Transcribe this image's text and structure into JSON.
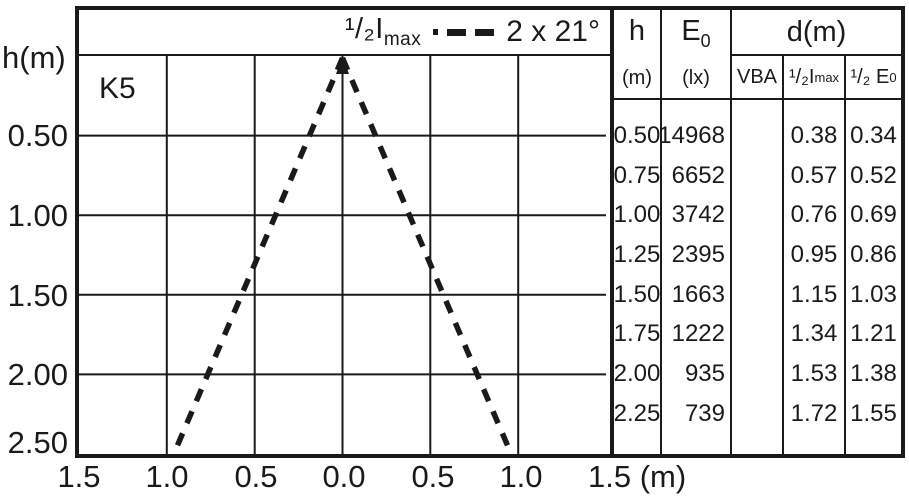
{
  "chart": {
    "corner_label": "K5",
    "y_axis_title": "h(m)",
    "y_ticks": [
      "0.50",
      "1.00",
      "1.50",
      "2.00",
      "2.50"
    ],
    "x_ticks": [
      "1.5",
      "1.0",
      "0.5",
      "0.0",
      "0.5",
      "1.0"
    ],
    "x_tick_last": "1.5 (m)",
    "legend": {
      "imax_main": "¹/₂I",
      "imax_sub": "max",
      "angle": "2 x 21°"
    }
  },
  "chart_data": {
    "type": "line",
    "title": "K5",
    "ylabel": "h(m)",
    "xlabel": "(m)",
    "x_range": [
      -1.5,
      1.5
    ],
    "y_range": [
      0,
      2.5
    ],
    "y_inverted": true,
    "grid": true,
    "x_tick_step": 0.5,
    "y_tick_step": 0.5,
    "legend_label": "1/2 Imax",
    "beam_angle_label": "2 x 21°",
    "beam_half_angle_deg": 21,
    "series": [
      {
        "name": "1/2 Imax beam edge left",
        "style": "dashed",
        "x": [
          0,
          -0.96
        ],
        "y": [
          0,
          2.5
        ]
      },
      {
        "name": "1/2 Imax beam edge right",
        "style": "dashed",
        "x": [
          0,
          0.96
        ],
        "y": [
          0,
          2.5
        ]
      }
    ]
  },
  "table": {
    "header": {
      "h_title": "h",
      "h_unit": "(m)",
      "e0_title": "E",
      "e0_title_sub": "0",
      "e0_unit": "(lx)",
      "d_title": "d(m)",
      "sub_vba": "VBA",
      "sub_imax_main": "¹/₂I",
      "sub_imax_sub": "max",
      "sub_e0_main": "¹/₂ E",
      "sub_e0_sub": "0"
    },
    "rows": [
      {
        "h": "0.50",
        "e0": "14968",
        "vba": "",
        "d_imax": "0.38",
        "d_e0": "0.34"
      },
      {
        "h": "0.75",
        "e0": "6652",
        "vba": "",
        "d_imax": "0.57",
        "d_e0": "0.52"
      },
      {
        "h": "1.00",
        "e0": "3742",
        "vba": "",
        "d_imax": "0.76",
        "d_e0": "0.69"
      },
      {
        "h": "1.25",
        "e0": "2395",
        "vba": "",
        "d_imax": "0.95",
        "d_e0": "0.86"
      },
      {
        "h": "1.50",
        "e0": "1663",
        "vba": "",
        "d_imax": "1.15",
        "d_e0": "1.03"
      },
      {
        "h": "1.75",
        "e0": "1222",
        "vba": "",
        "d_imax": "1.34",
        "d_e0": "1.21"
      },
      {
        "h": "2.00",
        "e0": "935",
        "vba": "",
        "d_imax": "1.53",
        "d_e0": "1.38"
      },
      {
        "h": "2.25",
        "e0": "739",
        "vba": "",
        "d_imax": "1.72",
        "d_e0": "1.55"
      }
    ]
  },
  "colors": {
    "ink": "#1a1a1a",
    "background": "#ffffff"
  }
}
